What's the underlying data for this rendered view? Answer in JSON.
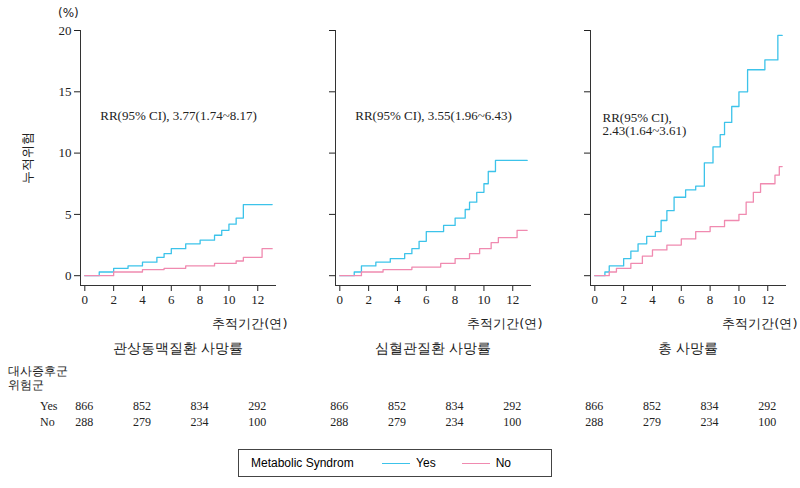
{
  "chart_data": [
    {
      "type": "line",
      "title": "관상동맥질환 사망률",
      "annotation": "RR(95% CI), 3.77(1.74~8.17)",
      "x_label": "추적기간(연)",
      "y_label": "누적위험",
      "y_unit_label": "(%)",
      "xlim": [
        -0.3,
        13.3
      ],
      "ylim": [
        -0.8,
        20
      ],
      "xticks": [
        0,
        2,
        4,
        6,
        8,
        10,
        12
      ],
      "yticks": [
        0,
        5,
        10,
        15,
        20
      ],
      "line_style": "step",
      "series": [
        {
          "name": "Yes",
          "color": "#3cc3ea",
          "x": [
            0,
            1,
            2,
            3,
            4,
            5,
            5.5,
            6,
            7,
            8,
            9,
            9.5,
            10,
            10.5,
            11,
            13
          ],
          "values": [
            0,
            0.3,
            0.6,
            0.8,
            1.1,
            1.5,
            1.8,
            2.2,
            2.6,
            2.9,
            3.3,
            3.7,
            4.2,
            4.7,
            5.8,
            5.8
          ]
        },
        {
          "name": "No",
          "color": "#f08ab0",
          "x": [
            0,
            2,
            4,
            5.5,
            7,
            9,
            10.5,
            11,
            12.3,
            13
          ],
          "values": [
            0,
            0.3,
            0.5,
            0.6,
            0.8,
            1.0,
            1.2,
            1.5,
            2.2,
            2.2
          ]
        }
      ]
    },
    {
      "type": "line",
      "title": "심혈관질환 사망률",
      "annotation": "RR(95% CI), 3.55(1.96~6.43)",
      "x_label": "추적기간(연)",
      "tick_labels": "x",
      "xlim": [
        -0.3,
        13.3
      ],
      "ylim": [
        -0.8,
        20
      ],
      "xticks": [
        0,
        2,
        4,
        6,
        8,
        10,
        12
      ],
      "yticks": [
        0,
        5,
        10,
        15,
        20
      ],
      "line_style": "step",
      "series": [
        {
          "name": "Yes",
          "color": "#3cc3ea",
          "x": [
            0,
            1,
            1.5,
            2.5,
            3.5,
            4.5,
            5,
            5.5,
            6,
            7.2,
            8,
            8.7,
            9,
            9.5,
            10,
            10.3,
            10.8,
            13
          ],
          "values": [
            0,
            0.3,
            0.8,
            1.1,
            1.4,
            1.8,
            2.2,
            2.8,
            3.6,
            4.1,
            4.7,
            5.4,
            6.0,
            6.8,
            7.5,
            8.5,
            9.4,
            9.4
          ]
        },
        {
          "name": "No",
          "color": "#f08ab0",
          "x": [
            0,
            1.5,
            3,
            5,
            7,
            8,
            9,
            9.7,
            10.5,
            11,
            12.3,
            13
          ],
          "values": [
            0,
            0.3,
            0.5,
            0.7,
            1.0,
            1.4,
            1.8,
            2.2,
            2.7,
            3.1,
            3.7,
            3.7
          ]
        }
      ]
    },
    {
      "type": "line",
      "title": "총 사망률",
      "annotation": "RR(95% CI),\n2.43(1.64~3.61)",
      "x_label": "추적기간(연)",
      "tick_labels": "x",
      "xlim": [
        -0.3,
        13.3
      ],
      "ylim": [
        -0.8,
        20
      ],
      "xticks": [
        0,
        2,
        4,
        6,
        8,
        10,
        12
      ],
      "yticks": [
        0,
        5,
        10,
        15,
        20
      ],
      "line_style": "step",
      "series": [
        {
          "name": "Yes",
          "color": "#3cc3ea",
          "x": [
            0,
            0.7,
            1,
            2,
            2.5,
            3,
            3.6,
            4.2,
            4.6,
            5,
            5.5,
            6.3,
            7,
            7.6,
            8.2,
            8.7,
            9,
            9.5,
            10,
            10.6,
            11.8,
            12.7,
            13
          ],
          "values": [
            0,
            0.3,
            0.8,
            1.4,
            2.0,
            2.6,
            3.2,
            3.6,
            4.5,
            5.3,
            6.4,
            7.0,
            7.3,
            9.2,
            10.5,
            11.5,
            12.5,
            13.8,
            15.0,
            16.8,
            17.6,
            19.6,
            19.6
          ]
        },
        {
          "name": "No",
          "color": "#f08ab0",
          "x": [
            0,
            1,
            1.5,
            2.5,
            3.3,
            4,
            5,
            6,
            7,
            8,
            9,
            10,
            10.5,
            11,
            11.5,
            12.5,
            12.8,
            13
          ],
          "values": [
            0,
            0.3,
            0.6,
            1.0,
            1.6,
            2.1,
            2.5,
            3.0,
            3.6,
            4.0,
            4.5,
            5.0,
            6.0,
            6.8,
            7.5,
            8.2,
            8.9,
            8.9
          ]
        }
      ]
    }
  ],
  "risk_table": {
    "title": "대사증후군 위험군",
    "times": [
      0,
      4,
      8,
      12
    ],
    "rows": [
      {
        "name": "Yes",
        "values": [
          866,
          852,
          834,
          292
        ]
      },
      {
        "name": "No",
        "values": [
          288,
          279,
          234,
          100
        ]
      }
    ]
  },
  "legend_title": "Metabolic Syndrom"
}
